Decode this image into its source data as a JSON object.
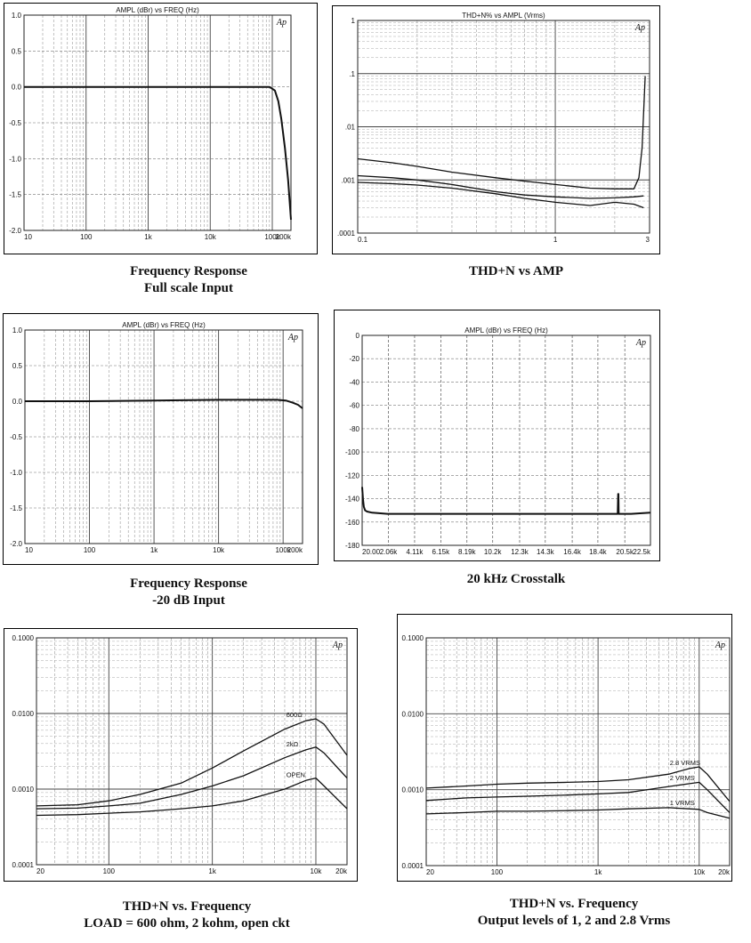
{
  "captions": {
    "c1": [
      "Frequency Response",
      "Full scale Input"
    ],
    "c2": [
      "THD+N vs AMP"
    ],
    "c3": [
      "Frequency Response",
      "-20 dB Input"
    ],
    "c4": [
      "20 kHz Crosstalk"
    ],
    "c5": [
      "THD+N vs. Frequency",
      "LOAD = 600 ohm, 2 kohm, open ckt"
    ],
    "c6": [
      "THD+N vs. Frequency",
      "Output levels of 1, 2 and 2.8 Vrms"
    ]
  },
  "chart_data": [
    {
      "id": "fr-full",
      "type": "line",
      "title": "AMPL (dBr) vs FREQ (Hz)",
      "logo": "Ap",
      "xscale": "log",
      "xlim": [
        10,
        200000
      ],
      "ylim": [
        -2.0,
        1.0
      ],
      "xticks": [
        [
          10,
          "10"
        ],
        [
          100,
          "100"
        ],
        [
          1000,
          "1k"
        ],
        [
          10000,
          "10k"
        ],
        [
          100000,
          "100k"
        ],
        [
          200000,
          "200k"
        ]
      ],
      "yticks": [
        [
          1.0,
          "1.0"
        ],
        [
          0.5,
          "0.5"
        ],
        [
          0.0,
          "0.0"
        ],
        [
          -0.5,
          "-0.5"
        ],
        [
          -1.0,
          "-1.0"
        ],
        [
          -1.5,
          "-1.5"
        ],
        [
          -2.0,
          "-2.0"
        ]
      ],
      "series": [
        {
          "x": [
            10,
            100,
            1000,
            10000,
            50000,
            90000,
            110000,
            125000,
            140000,
            160000,
            180000,
            200000
          ],
          "y": [
            0.0,
            0.0,
            0.0,
            0.0,
            0.0,
            0.0,
            -0.05,
            -0.2,
            -0.45,
            -0.85,
            -1.3,
            -1.85
          ]
        }
      ]
    },
    {
      "id": "thd-amp",
      "type": "line",
      "title": "THD+N% vs AMPL (Vrms)",
      "logo": "Ap",
      "xscale": "log",
      "yscale": "log",
      "xlim": [
        0.1,
        3
      ],
      "ylim": [
        0.0001,
        1
      ],
      "xticks": [
        [
          0.1,
          "0.1"
        ],
        [
          1,
          "1"
        ],
        [
          3,
          "3"
        ]
      ],
      "yticks": [
        [
          1,
          "1"
        ],
        [
          0.1,
          ".1"
        ],
        [
          0.01,
          ".01"
        ],
        [
          0.001,
          ".001"
        ],
        [
          0.0001,
          ".0001"
        ]
      ],
      "series": [
        {
          "x": [
            0.1,
            0.15,
            0.2,
            0.3,
            0.5,
            0.7,
            1.0,
            1.5,
            2.0,
            2.5,
            2.65,
            2.75,
            2.85
          ],
          "y": [
            0.0025,
            0.0021,
            0.0018,
            0.0014,
            0.0011,
            0.00095,
            0.00082,
            0.0007,
            0.00068,
            0.00068,
            0.0011,
            0.004,
            0.09
          ]
        },
        {
          "x": [
            0.1,
            0.15,
            0.2,
            0.3,
            0.5,
            0.7,
            1.0,
            1.5,
            2.0,
            2.5,
            2.8
          ],
          "y": [
            0.0012,
            0.0011,
            0.001,
            0.00082,
            0.0006,
            0.00052,
            0.00048,
            0.00045,
            0.00046,
            0.00048,
            0.0005
          ]
        },
        {
          "x": [
            0.1,
            0.15,
            0.2,
            0.3,
            0.5,
            0.7,
            1.0,
            1.5,
            2.0,
            2.5,
            2.8
          ],
          "y": [
            0.0009,
            0.00085,
            0.0008,
            0.0007,
            0.00055,
            0.00045,
            0.00038,
            0.00033,
            0.00038,
            0.00035,
            0.0003
          ]
        }
      ]
    },
    {
      "id": "fr-20db",
      "type": "line",
      "title": "AMPL (dBr) vs FREQ (Hz)",
      "logo": "Ap",
      "xscale": "log",
      "xlim": [
        10,
        200000
      ],
      "ylim": [
        -2.0,
        1.0
      ],
      "xticks": [
        [
          10,
          "10"
        ],
        [
          100,
          "100"
        ],
        [
          1000,
          "1k"
        ],
        [
          10000,
          "10k"
        ],
        [
          100000,
          "100k"
        ],
        [
          200000,
          "200k"
        ]
      ],
      "yticks": [
        [
          1.0,
          "1.0"
        ],
        [
          0.5,
          "0.5"
        ],
        [
          0.0,
          "0.0"
        ],
        [
          -0.5,
          "-0.5"
        ],
        [
          -1.0,
          "-1.0"
        ],
        [
          -1.5,
          "-1.5"
        ],
        [
          -2.0,
          "-2.0"
        ]
      ],
      "series": [
        {
          "x": [
            10,
            100,
            1000,
            10000,
            40000,
            80000,
            110000,
            140000,
            170000,
            200000
          ],
          "y": [
            0.0,
            0.0,
            0.01,
            0.02,
            0.02,
            0.02,
            0.01,
            -0.02,
            -0.05,
            -0.1
          ]
        }
      ]
    },
    {
      "id": "crosstalk",
      "type": "line",
      "title": "AMPL (dBr) vs FREQ (Hz)",
      "logo": "Ap",
      "xscale": "linear",
      "xlim": [
        20,
        22500
      ],
      "ylim": [
        -180,
        0
      ],
      "xticks": [
        [
          20,
          "20.00"
        ],
        [
          2068,
          "2.06k"
        ],
        [
          4110,
          "4.11k"
        ],
        [
          6150,
          "6.15k"
        ],
        [
          8190,
          "8.19k"
        ],
        [
          10200,
          "10.2k"
        ],
        [
          12300,
          "12.3k"
        ],
        [
          14300,
          "14.3k"
        ],
        [
          16400,
          "16.4k"
        ],
        [
          18400,
          "18.4k"
        ],
        [
          20500,
          "20.5k"
        ],
        [
          22500,
          "22.5k"
        ]
      ],
      "yticks": [
        [
          0,
          "0"
        ],
        [
          -20,
          "-20"
        ],
        [
          -40,
          "-40"
        ],
        [
          -60,
          "-60"
        ],
        [
          -80,
          "-80"
        ],
        [
          -100,
          "-100"
        ],
        [
          -120,
          "-120"
        ],
        [
          -140,
          "-140"
        ],
        [
          -160,
          "-160"
        ],
        [
          -180,
          "-180"
        ]
      ],
      "series": [
        {
          "x": [
            20,
            80,
            150,
            250,
            400,
            800,
            2000,
            6000,
            12000,
            18000,
            19950,
            19980,
            20000,
            20020,
            20050,
            21000,
            22500
          ],
          "y": [
            -130,
            -140,
            -147,
            -150,
            -151,
            -152,
            -153,
            -153,
            -153,
            -153,
            -153,
            -136,
            -136,
            -153,
            -153,
            -153,
            -152
          ]
        }
      ]
    },
    {
      "id": "thd-freq-load",
      "type": "line",
      "logo": "Ap",
      "xscale": "log",
      "yscale": "log",
      "xlim": [
        20,
        20000
      ],
      "ylim": [
        0.0001,
        0.1
      ],
      "xticks": [
        [
          20,
          "20"
        ],
        [
          100,
          "100"
        ],
        [
          1000,
          "1k"
        ],
        [
          10000,
          "10k"
        ],
        [
          20000,
          "20k"
        ]
      ],
      "yticks": [
        [
          0.1,
          "0.1000"
        ],
        [
          0.01,
          "0.0100"
        ],
        [
          0.001,
          "0.0010"
        ],
        [
          0.0001,
          "0.0001"
        ]
      ],
      "series": [
        {
          "name": "600Ω",
          "x": [
            20,
            50,
            100,
            200,
            500,
            1000,
            2000,
            5000,
            8000,
            10000,
            12000,
            20000
          ],
          "y": [
            0.0006,
            0.00062,
            0.0007,
            0.00085,
            0.0012,
            0.0019,
            0.0032,
            0.0062,
            0.008,
            0.0085,
            0.0072,
            0.0028
          ]
        },
        {
          "name": "2kΩ",
          "x": [
            20,
            50,
            100,
            200,
            500,
            1000,
            2000,
            5000,
            8000,
            10000,
            12000,
            20000
          ],
          "y": [
            0.00055,
            0.00056,
            0.0006,
            0.00065,
            0.00085,
            0.0011,
            0.0015,
            0.0026,
            0.0033,
            0.0036,
            0.003,
            0.0014
          ]
        },
        {
          "name": "OPEN",
          "x": [
            20,
            50,
            100,
            200,
            500,
            1000,
            2000,
            5000,
            8000,
            10000,
            12000,
            20000
          ],
          "y": [
            0.00045,
            0.00046,
            0.00048,
            0.0005,
            0.00055,
            0.0006,
            0.0007,
            0.001,
            0.0013,
            0.0014,
            0.0011,
            0.00055
          ]
        }
      ]
    },
    {
      "id": "thd-freq-level",
      "type": "line",
      "logo": "Ap",
      "xscale": "log",
      "yscale": "log",
      "xlim": [
        20,
        20000
      ],
      "ylim": [
        0.0001,
        0.1
      ],
      "xticks": [
        [
          20,
          "20"
        ],
        [
          100,
          "100"
        ],
        [
          1000,
          "1k"
        ],
        [
          10000,
          "10k"
        ],
        [
          20000,
          "20k"
        ]
      ],
      "yticks": [
        [
          0.1,
          "0.1000"
        ],
        [
          0.01,
          "0.0100"
        ],
        [
          0.001,
          "0.0010"
        ],
        [
          0.0001,
          "0.0001"
        ]
      ],
      "series": [
        {
          "name": "2.8 VRMS",
          "x": [
            20,
            50,
            100,
            200,
            500,
            1000,
            2000,
            5000,
            8000,
            10000,
            12000,
            20000
          ],
          "y": [
            0.00105,
            0.00112,
            0.00118,
            0.00122,
            0.00125,
            0.00128,
            0.00135,
            0.0016,
            0.0019,
            0.002,
            0.0016,
            0.0007
          ]
        },
        {
          "name": "2 VRMS",
          "x": [
            20,
            50,
            100,
            200,
            500,
            1000,
            2000,
            5000,
            8000,
            10000,
            12000,
            20000
          ],
          "y": [
            0.00072,
            0.00078,
            0.0008,
            0.00082,
            0.00085,
            0.00088,
            0.00092,
            0.0011,
            0.0012,
            0.00125,
            0.001,
            0.0005
          ]
        },
        {
          "name": "1 VRMS",
          "x": [
            20,
            50,
            100,
            200,
            500,
            1000,
            2000,
            5000,
            8000,
            10000,
            12000,
            20000
          ],
          "y": [
            0.00048,
            0.0005,
            0.00052,
            0.00052,
            0.00053,
            0.00054,
            0.00056,
            0.00058,
            0.00056,
            0.00055,
            0.0005,
            0.00042
          ]
        }
      ]
    }
  ]
}
